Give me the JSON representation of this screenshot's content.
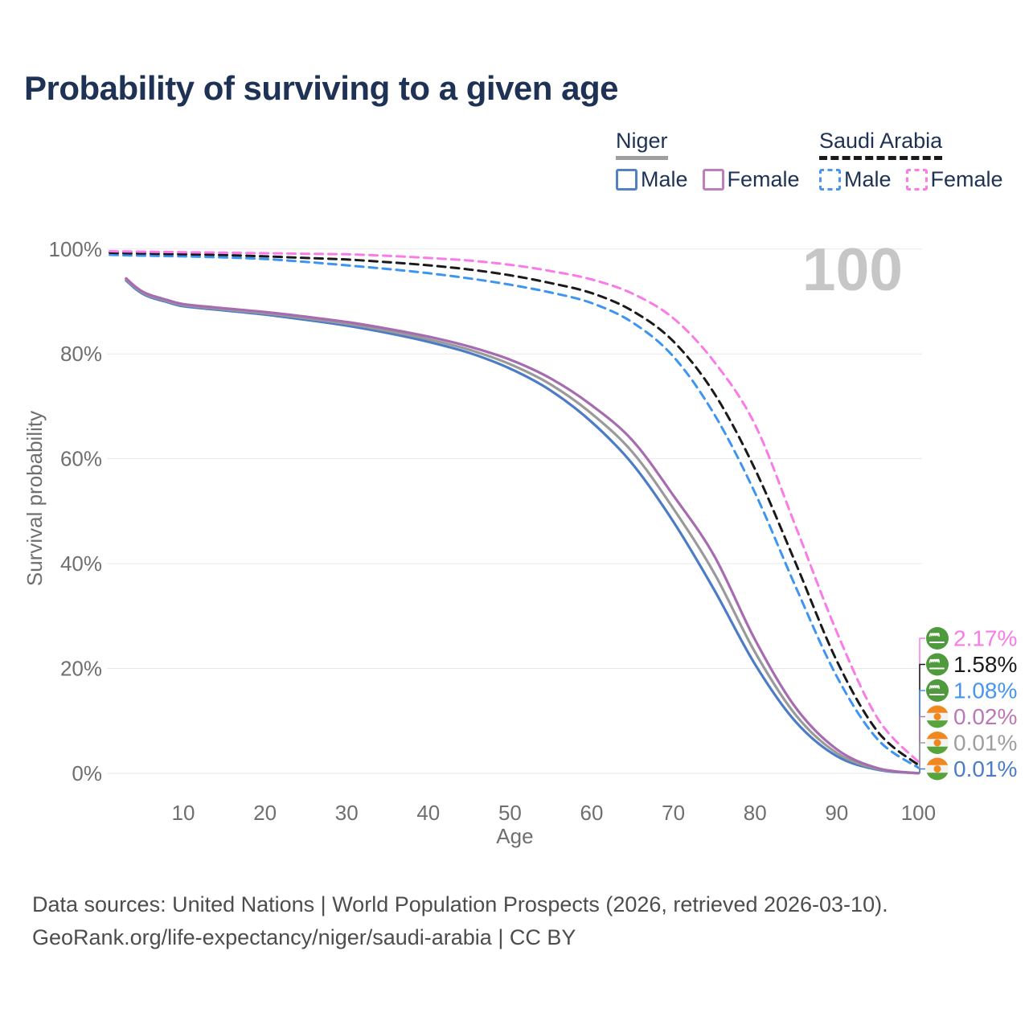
{
  "page": {
    "footer_line1": "Data sources: United Nations | World Population Prospects (2026, retrieved 2026-03-10).",
    "footer_line2": "GeoRank.org/life-expectancy/niger/saudi-arabia | CC BY"
  },
  "legend": {
    "groups": [
      {
        "name": "Niger",
        "underline_color": "#9e9e9e",
        "underline_style": "solid",
        "items": [
          {
            "label": "Male",
            "color": "#5580c2",
            "style": "solid"
          },
          {
            "label": "Female",
            "color": "#c07fbb",
            "style": "solid"
          }
        ]
      },
      {
        "name": "Saudi Arabia",
        "underline_color": "#1a1a1a",
        "underline_style": "dashed",
        "items": [
          {
            "label": "Male",
            "color": "#4a95ea",
            "style": "dashed"
          },
          {
            "label": "Female",
            "color": "#fb7be4",
            "style": "dashed"
          }
        ]
      }
    ]
  },
  "chart_data": {
    "type": "line",
    "title": "Probability of surviving to a given age",
    "xlabel": "Age",
    "ylabel": "Survival probability",
    "x_ticks": [
      10,
      20,
      30,
      40,
      50,
      60,
      70,
      80,
      90,
      100
    ],
    "y_ticks": [
      0,
      20,
      40,
      60,
      80,
      100
    ],
    "y_tick_suffix": "%",
    "xlim": [
      1,
      100
    ],
    "ylim": [
      0,
      100
    ],
    "grid": true,
    "legend_position": "top-right",
    "watermark": "100",
    "series": [
      {
        "id": "niger-male",
        "name": "Niger — Male",
        "country": "Niger",
        "sex": "Male",
        "color": "#4d7cc6",
        "dash": false,
        "ages": [
          3,
          4,
          5,
          6,
          8,
          10,
          15,
          20,
          25,
          30,
          35,
          40,
          45,
          50,
          55,
          60,
          65,
          70,
          75,
          80,
          85,
          90,
          95,
          100
        ],
        "values": [
          94.0,
          92.6,
          91.5,
          90.8,
          89.9,
          89.1,
          88.3,
          87.5,
          86.5,
          85.4,
          84.0,
          82.3,
          80.2,
          77.2,
          73.0,
          67.0,
          59.0,
          48.0,
          35.0,
          20.8,
          9.8,
          3.3,
          0.7,
          0.01
        ]
      },
      {
        "id": "niger-both",
        "name": "Niger — Both sexes",
        "country": "Niger",
        "sex": "Both",
        "color": "#9a9a9a",
        "dash": false,
        "ages": [
          3,
          4,
          5,
          6,
          8,
          10,
          15,
          20,
          25,
          30,
          35,
          40,
          45,
          50,
          55,
          60,
          65,
          70,
          75,
          80,
          85,
          90,
          95,
          100
        ],
        "values": [
          94.2,
          92.8,
          91.7,
          91.0,
          90.1,
          89.3,
          88.5,
          87.75,
          86.8,
          85.75,
          84.4,
          82.8,
          80.8,
          78.05,
          74.15,
          68.6,
          61.25,
          50.5,
          38.2,
          23.1,
          11.1,
          3.9,
          0.85,
          0.01
        ]
      },
      {
        "id": "niger-female",
        "name": "Niger — Female",
        "country": "Niger",
        "sex": "Female",
        "color": "#a76bb0",
        "dash": false,
        "ages": [
          3,
          4,
          5,
          6,
          8,
          10,
          15,
          20,
          25,
          30,
          35,
          40,
          45,
          50,
          55,
          60,
          65,
          70,
          75,
          80,
          85,
          90,
          95,
          100
        ],
        "values": [
          94.4,
          93.0,
          91.9,
          91.2,
          90.3,
          89.5,
          88.7,
          88.0,
          87.1,
          86.1,
          84.8,
          83.3,
          81.4,
          78.9,
          75.3,
          70.2,
          63.5,
          53.0,
          41.5,
          25.5,
          12.5,
          4.6,
          1.0,
          0.02
        ]
      },
      {
        "id": "saudi-male",
        "name": "Saudi Arabia — Male",
        "country": "Saudi Arabia",
        "sex": "Male",
        "color": "#3e95f1",
        "dash": true,
        "ages": [
          1,
          2,
          5,
          10,
          15,
          20,
          25,
          30,
          35,
          40,
          45,
          50,
          55,
          60,
          65,
          70,
          75,
          80,
          85,
          90,
          95,
          100
        ],
        "values": [
          98.9,
          98.85,
          98.75,
          98.6,
          98.4,
          98.1,
          97.55,
          96.9,
          96.2,
          95.4,
          94.4,
          93.2,
          91.7,
          89.7,
          86.0,
          79.5,
          68.5,
          53.5,
          35.5,
          18.5,
          6.5,
          1.08
        ]
      },
      {
        "id": "saudi-both",
        "name": "Saudi Arabia — Both sexes",
        "country": "Saudi Arabia",
        "sex": "Both",
        "color": "#1a1a1a",
        "dash": true,
        "ages": [
          1,
          2,
          5,
          10,
          15,
          20,
          25,
          30,
          35,
          40,
          45,
          50,
          55,
          60,
          65,
          70,
          75,
          80,
          85,
          90,
          95,
          100
        ],
        "values": [
          99.3,
          99.25,
          99.15,
          99.0,
          98.85,
          98.6,
          98.3,
          98.0,
          97.5,
          96.9,
          96.1,
          95.0,
          93.5,
          91.6,
          88.2,
          82.4,
          72.5,
          58.0,
          40.0,
          21.5,
          8.0,
          1.58
        ]
      },
      {
        "id": "saudi-female",
        "name": "Saudi Arabia — Female",
        "country": "Saudi Arabia",
        "sex": "Female",
        "color": "#fa7be7",
        "dash": true,
        "ages": [
          1,
          2,
          5,
          10,
          15,
          20,
          25,
          30,
          35,
          40,
          45,
          50,
          55,
          60,
          65,
          70,
          75,
          80,
          85,
          90,
          95,
          100
        ],
        "values": [
          99.6,
          99.55,
          99.5,
          99.4,
          99.3,
          99.2,
          99.1,
          99.0,
          98.7,
          98.3,
          97.8,
          97.0,
          95.8,
          94.2,
          91.5,
          86.8,
          78.5,
          66.5,
          47.0,
          27.0,
          10.5,
          2.17
        ]
      }
    ],
    "end_labels": [
      {
        "text": "2.17%",
        "series": "saudi-female",
        "flag": "saudi-arabia",
        "color": "#fa7be7"
      },
      {
        "text": "1.58%",
        "series": "saudi-both",
        "flag": "saudi-arabia",
        "color": "#1a1a1a"
      },
      {
        "text": "1.08%",
        "series": "saudi-male",
        "flag": "saudi-arabia",
        "color": "#4695f0"
      },
      {
        "text": "0.02%",
        "series": "niger-female",
        "flag": "niger",
        "color": "#bc77b6"
      },
      {
        "text": "0.01%",
        "series": "niger-both",
        "flag": "niger",
        "color": "#9e9e9e"
      },
      {
        "text": "0.01%",
        "series": "niger-male",
        "flag": "niger",
        "color": "#4d7cc6"
      }
    ],
    "flag_colors": {
      "saudi_green": "#4f9a3c",
      "niger_orange": "#f0871f",
      "niger_white": "#f3f3f3",
      "niger_green": "#57a33c"
    }
  }
}
